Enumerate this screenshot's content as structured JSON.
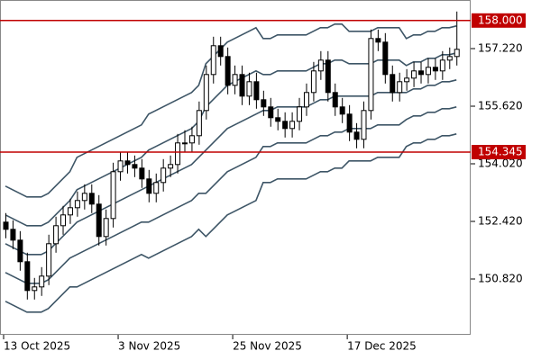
{
  "chart_data": {
    "type": "candlestick",
    "categories": [
      "13 Oct 2025",
      null,
      null,
      null,
      null,
      null,
      null,
      null,
      null,
      null,
      null,
      null,
      null,
      null,
      null,
      null,
      "3 Nov 2025",
      null,
      null,
      null,
      null,
      null,
      null,
      null,
      null,
      null,
      null,
      null,
      null,
      null,
      null,
      null,
      "25 Nov 2025",
      null,
      null,
      null,
      null,
      null,
      null,
      null,
      null,
      null,
      null,
      null,
      null,
      null,
      null,
      null,
      "17 Dec 2025",
      null,
      null,
      null,
      null,
      null,
      null,
      null,
      null,
      null,
      null,
      null,
      null,
      null,
      null,
      null
    ],
    "ohlc": [
      [
        152.4,
        152.65,
        151.95,
        152.2
      ],
      [
        152.2,
        152.45,
        151.65,
        151.9
      ],
      [
        151.9,
        152.15,
        151.05,
        151.3
      ],
      [
        151.3,
        151.55,
        150.25,
        150.5
      ],
      [
        150.5,
        150.85,
        150.25,
        150.6
      ],
      [
        150.6,
        151.15,
        150.35,
        150.9
      ],
      [
        150.9,
        152.05,
        150.65,
        151.8
      ],
      [
        151.8,
        152.55,
        151.55,
        152.3
      ],
      [
        152.3,
        152.85,
        152.05,
        152.6
      ],
      [
        152.6,
        153.05,
        152.35,
        152.8
      ],
      [
        152.8,
        153.25,
        152.55,
        153.0
      ],
      [
        153.0,
        153.45,
        152.75,
        153.2
      ],
      [
        153.2,
        153.45,
        152.65,
        152.9
      ],
      [
        152.9,
        153.15,
        151.75,
        152.0
      ],
      [
        152.0,
        152.75,
        151.75,
        152.5
      ],
      [
        152.5,
        154.05,
        152.25,
        153.8
      ],
      [
        153.8,
        154.35,
        153.55,
        154.1
      ],
      [
        154.1,
        154.35,
        153.75,
        154.0
      ],
      [
        154.0,
        154.25,
        153.65,
        153.9
      ],
      [
        153.9,
        154.15,
        153.35,
        153.6
      ],
      [
        153.6,
        153.85,
        152.95,
        153.2
      ],
      [
        153.2,
        153.75,
        152.95,
        153.5
      ],
      [
        153.5,
        154.15,
        153.25,
        153.9
      ],
      [
        153.9,
        154.25,
        153.65,
        154.0
      ],
      [
        154.0,
        154.85,
        153.75,
        154.6
      ],
      [
        154.6,
        154.95,
        154.35,
        154.6
      ],
      [
        154.6,
        155.05,
        154.35,
        154.8
      ],
      [
        154.8,
        155.75,
        154.55,
        155.5
      ],
      [
        155.5,
        156.75,
        155.25,
        156.5
      ],
      [
        156.5,
        157.55,
        156.25,
        157.3
      ],
      [
        157.3,
        157.55,
        156.75,
        157.0
      ],
      [
        157.0,
        157.25,
        155.95,
        156.2
      ],
      [
        156.2,
        156.75,
        155.95,
        156.5
      ],
      [
        156.5,
        156.75,
        155.65,
        155.9
      ],
      [
        155.9,
        156.55,
        155.65,
        156.3
      ],
      [
        156.3,
        156.55,
        155.55,
        155.8
      ],
      [
        155.8,
        156.05,
        155.35,
        155.6
      ],
      [
        155.6,
        155.85,
        155.05,
        155.3
      ],
      [
        155.3,
        155.55,
        154.95,
        155.2
      ],
      [
        155.2,
        155.45,
        154.75,
        155.0
      ],
      [
        155.0,
        155.45,
        154.75,
        155.2
      ],
      [
        155.2,
        155.85,
        154.95,
        155.6
      ],
      [
        155.6,
        156.25,
        155.35,
        156.0
      ],
      [
        156.0,
        156.85,
        155.75,
        156.6
      ],
      [
        156.6,
        157.15,
        156.35,
        156.9
      ],
      [
        156.9,
        157.15,
        155.75,
        156.0
      ],
      [
        156.0,
        156.25,
        155.35,
        155.6
      ],
      [
        155.6,
        155.85,
        155.15,
        155.4
      ],
      [
        155.4,
        155.65,
        154.65,
        154.9
      ],
      [
        154.9,
        155.15,
        154.45,
        154.7
      ],
      [
        154.7,
        155.75,
        154.45,
        155.5
      ],
      [
        155.5,
        157.75,
        155.25,
        157.5
      ],
      [
        157.5,
        157.75,
        157.15,
        157.4
      ],
      [
        157.4,
        157.65,
        156.25,
        156.5
      ],
      [
        156.5,
        156.75,
        155.75,
        156.0
      ],
      [
        156.0,
        156.55,
        155.75,
        156.3
      ],
      [
        156.3,
        156.65,
        156.05,
        156.4
      ],
      [
        156.4,
        156.85,
        156.15,
        156.6
      ],
      [
        156.6,
        156.85,
        156.25,
        156.5
      ],
      [
        156.5,
        156.95,
        156.25,
        156.7
      ],
      [
        156.7,
        156.95,
        156.35,
        156.6
      ],
      [
        156.6,
        157.15,
        156.35,
        156.9
      ],
      [
        156.9,
        157.25,
        156.65,
        157.0
      ],
      [
        157.0,
        158.25,
        156.75,
        157.2
      ]
    ],
    "up_color": "#ffffff",
    "down_color": "#000000",
    "series": [
      {
        "color": "#3d5566",
        "values": [
          153.4,
          153.3,
          153.2,
          153.1,
          153.1,
          153.1,
          153.2,
          153.4,
          153.6,
          153.8,
          154.2,
          154.3,
          154.4,
          154.5,
          154.6,
          154.7,
          154.8,
          154.9,
          155.0,
          155.1,
          155.4,
          155.5,
          155.6,
          155.7,
          155.8,
          155.9,
          156.0,
          156.2,
          156.8,
          157.0,
          157.2,
          157.4,
          157.5,
          157.6,
          157.7,
          157.8,
          157.5,
          157.5,
          157.6,
          157.6,
          157.6,
          157.6,
          157.6,
          157.7,
          157.8,
          157.8,
          157.9,
          157.9,
          157.7,
          157.7,
          157.7,
          157.7,
          157.8,
          157.8,
          157.8,
          157.8,
          157.5,
          157.6,
          157.6,
          157.7,
          157.7,
          157.8,
          157.8,
          157.85
        ]
      },
      {
        "color": "#3d5566",
        "values": [
          152.6,
          152.5,
          152.4,
          152.3,
          152.3,
          152.3,
          152.4,
          152.6,
          152.8,
          153.0,
          153.3,
          153.4,
          153.5,
          153.6,
          153.7,
          153.8,
          153.9,
          154.0,
          154.1,
          154.2,
          154.4,
          154.5,
          154.6,
          154.7,
          154.8,
          154.9,
          155.0,
          155.2,
          155.6,
          155.8,
          156.0,
          156.2,
          156.3,
          156.4,
          156.5,
          156.6,
          156.5,
          156.5,
          156.6,
          156.6,
          156.6,
          156.6,
          156.6,
          156.7,
          156.8,
          156.8,
          156.9,
          156.9,
          156.8,
          156.8,
          156.8,
          156.8,
          156.9,
          156.9,
          156.9,
          156.9,
          156.75,
          156.85,
          156.85,
          156.95,
          156.95,
          157.05,
          157.05,
          157.1
        ]
      },
      {
        "color": "#3d5566",
        "values": [
          151.8,
          151.7,
          151.6,
          151.5,
          151.5,
          151.5,
          151.6,
          151.8,
          152.0,
          152.2,
          152.4,
          152.5,
          152.6,
          152.7,
          152.8,
          152.9,
          153.0,
          153.1,
          153.2,
          153.3,
          153.4,
          153.5,
          153.6,
          153.7,
          153.8,
          153.9,
          154.0,
          154.2,
          154.4,
          154.6,
          154.8,
          155.0,
          155.1,
          155.2,
          155.3,
          155.4,
          155.5,
          155.5,
          155.6,
          155.6,
          155.6,
          155.6,
          155.6,
          155.7,
          155.8,
          155.8,
          155.9,
          155.9,
          155.9,
          155.9,
          155.9,
          155.9,
          156.0,
          156.0,
          156.0,
          156.0,
          156.0,
          156.1,
          156.1,
          156.2,
          156.2,
          156.3,
          156.3,
          156.35
        ]
      },
      {
        "color": "#3d5566",
        "values": [
          151.0,
          150.9,
          150.8,
          150.7,
          150.7,
          150.7,
          150.8,
          151.0,
          151.2,
          151.4,
          151.5,
          151.6,
          151.7,
          151.8,
          151.9,
          152.0,
          152.1,
          152.2,
          152.3,
          152.4,
          152.4,
          152.5,
          152.6,
          152.7,
          152.8,
          152.9,
          153.0,
          153.2,
          153.2,
          153.4,
          153.6,
          153.8,
          153.9,
          154.0,
          154.1,
          154.2,
          154.5,
          154.5,
          154.6,
          154.6,
          154.6,
          154.6,
          154.6,
          154.7,
          154.8,
          154.8,
          154.9,
          154.9,
          155.0,
          155.0,
          155.0,
          155.0,
          155.1,
          155.1,
          155.1,
          155.1,
          155.25,
          155.35,
          155.35,
          155.45,
          155.45,
          155.55,
          155.55,
          155.6
        ]
      },
      {
        "color": "#3d5566",
        "values": [
          150.2,
          150.1,
          150.0,
          149.9,
          149.9,
          149.9,
          150.0,
          150.2,
          150.4,
          150.6,
          150.6,
          150.7,
          150.8,
          150.9,
          151.0,
          151.1,
          151.2,
          151.3,
          151.4,
          151.5,
          151.4,
          151.5,
          151.6,
          151.7,
          151.8,
          151.9,
          152.0,
          152.2,
          152.0,
          152.2,
          152.4,
          152.6,
          152.7,
          152.8,
          152.9,
          153.0,
          153.5,
          153.5,
          153.6,
          153.6,
          153.6,
          153.6,
          153.6,
          153.7,
          153.8,
          153.8,
          153.9,
          153.9,
          154.1,
          154.1,
          154.1,
          154.1,
          154.2,
          154.2,
          154.2,
          154.2,
          154.5,
          154.6,
          154.6,
          154.7,
          154.7,
          154.8,
          154.8,
          154.85
        ]
      }
    ],
    "levels": [
      {
        "value": 158.0,
        "label": "158.000",
        "color": "#c00000"
      },
      {
        "value": 154.345,
        "label": "154.345",
        "color": "#c00000"
      }
    ],
    "ylim": [
      149.27,
      158.57
    ],
    "yticks": [
      {
        "value": 150.82,
        "label": "150.820"
      },
      {
        "value": 152.42,
        "label": "152.420"
      },
      {
        "value": 154.02,
        "label": "154.020"
      },
      {
        "value": 155.62,
        "label": "155.620"
      },
      {
        "value": 157.22,
        "label": "157.220"
      }
    ]
  }
}
